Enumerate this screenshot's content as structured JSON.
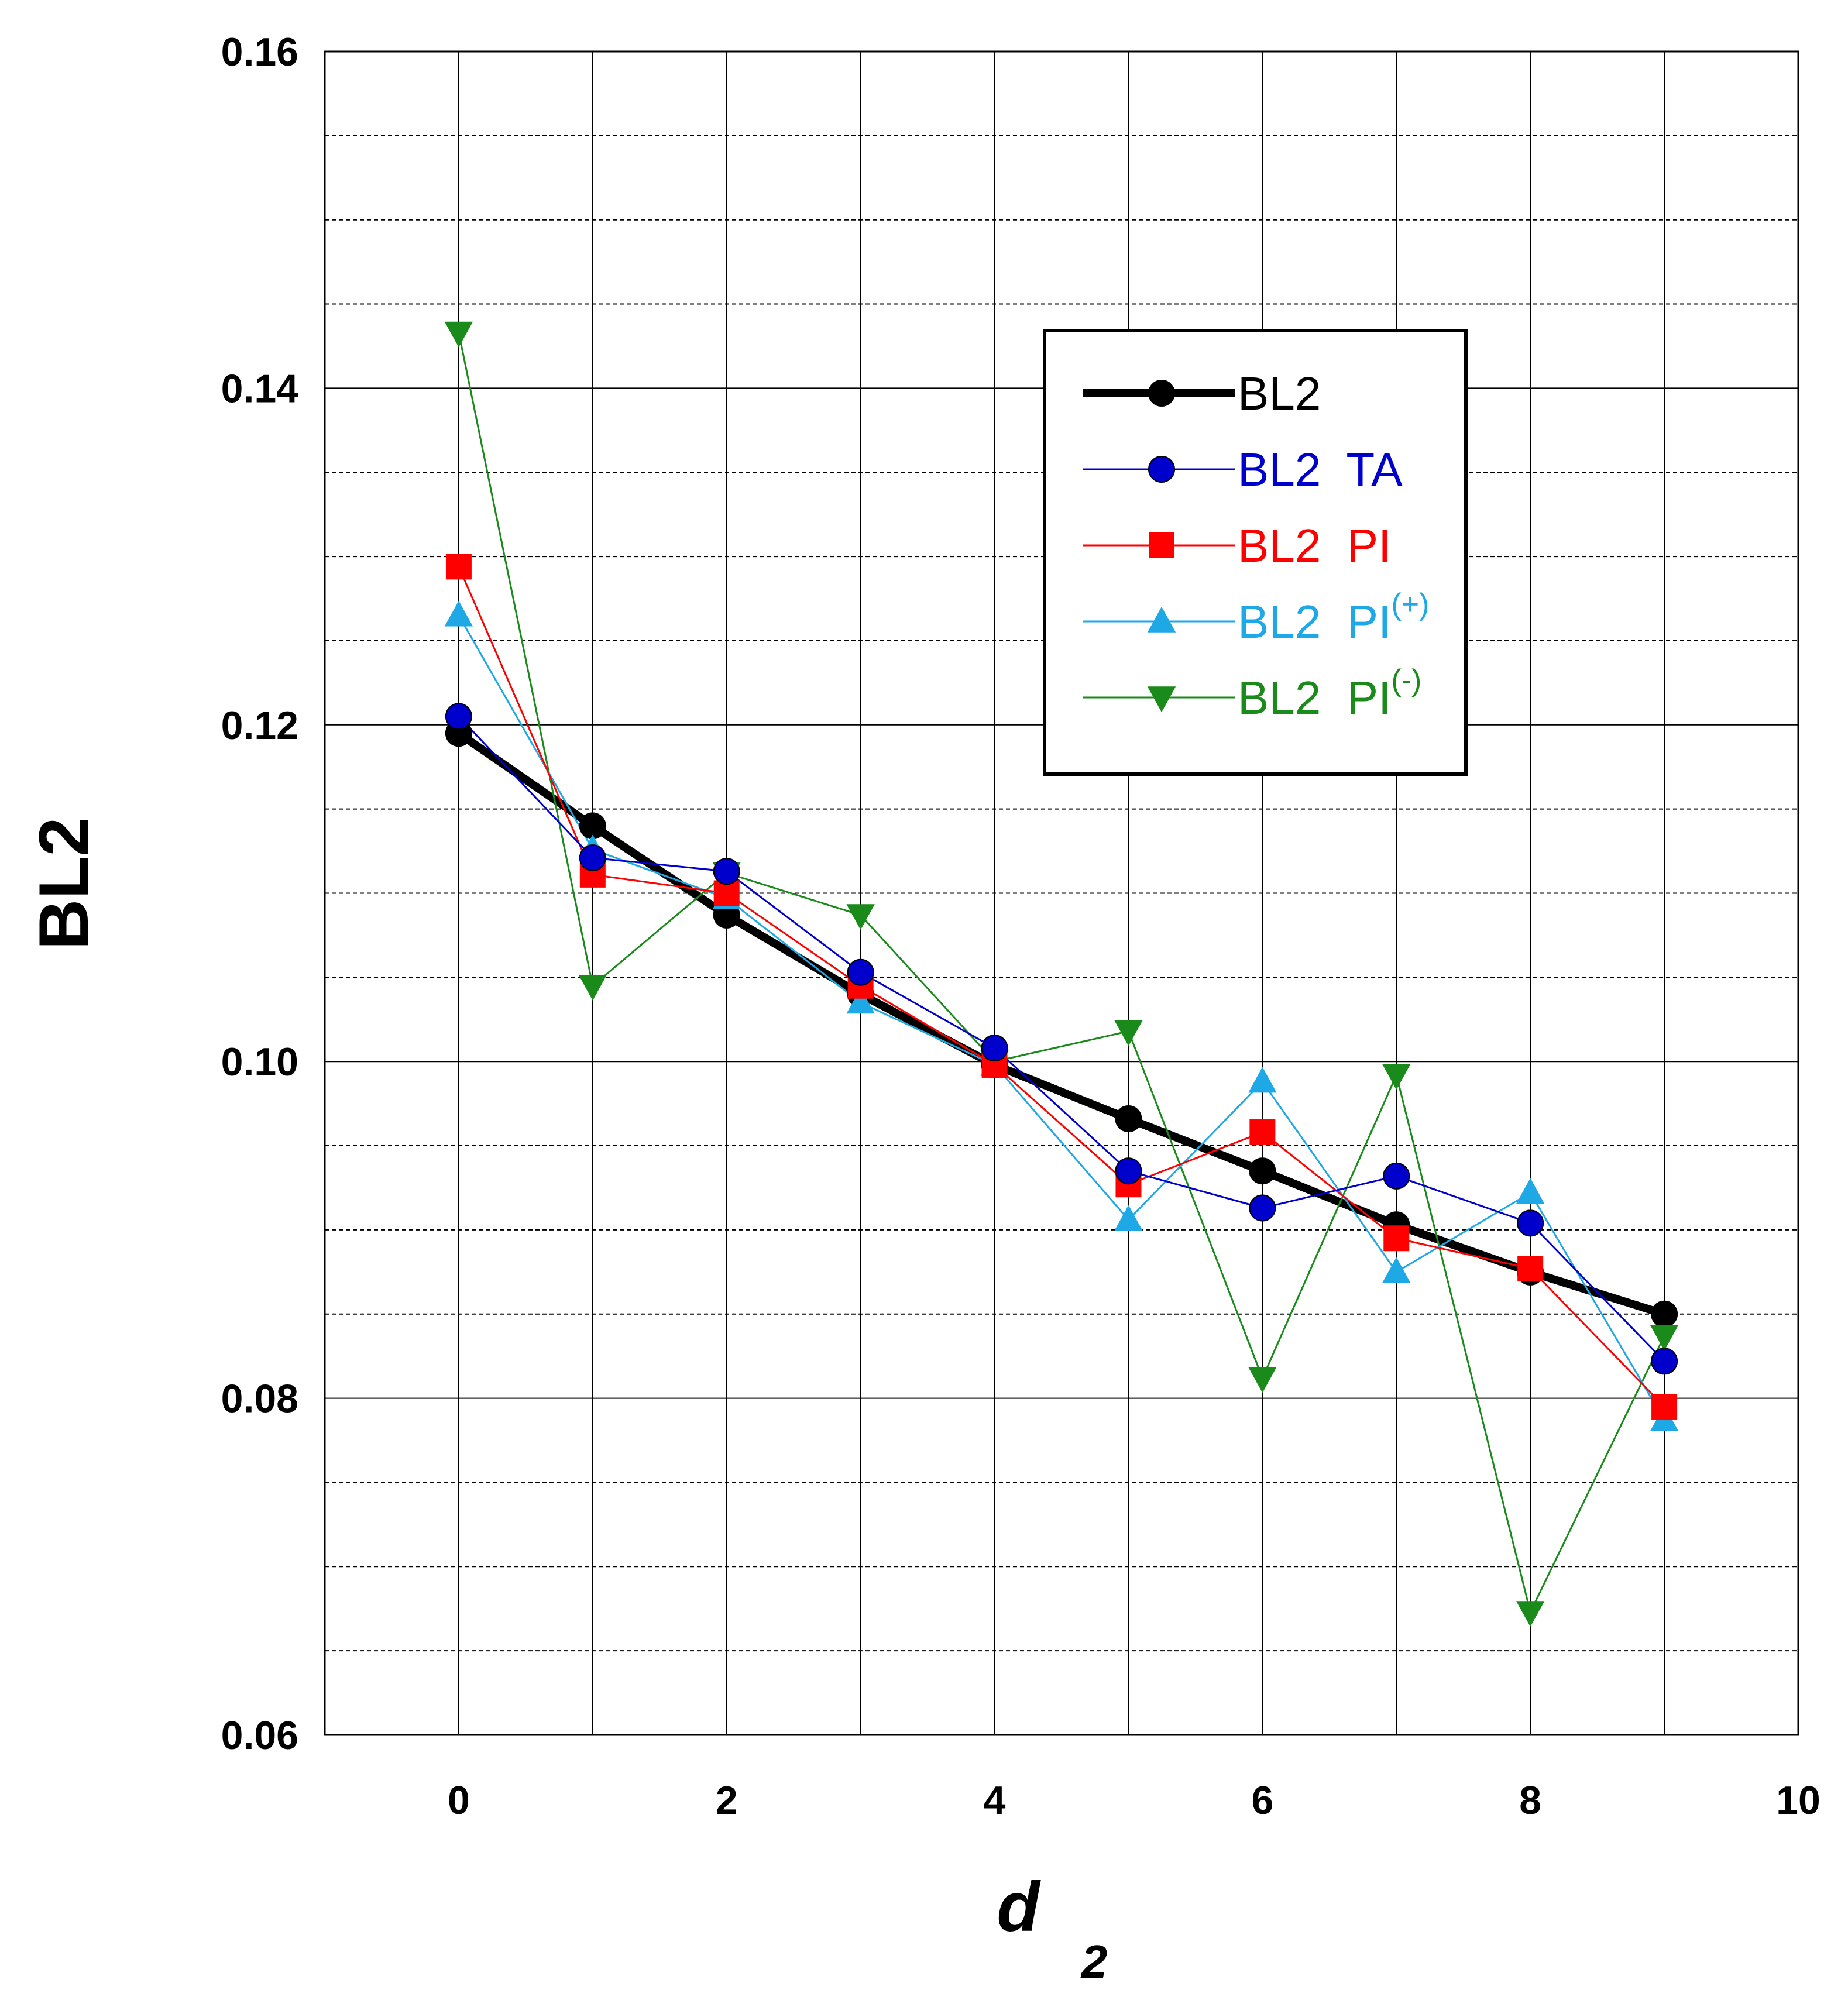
{
  "chart_data": {
    "type": "line",
    "title": "",
    "xlabel": "d",
    "xlabel_subscript": "2",
    "ylabel": "BL2",
    "xlim": [
      -1,
      10
    ],
    "ylim": [
      0.06,
      0.16
    ],
    "xticks": [
      0,
      2,
      4,
      6,
      8,
      10
    ],
    "xtick_labels": [
      "0",
      "2",
      "4",
      "6",
      "8",
      "10"
    ],
    "yticks": [
      0.06,
      0.08,
      0.1,
      0.12,
      0.14,
      0.16
    ],
    "ytick_labels": [
      "0.06",
      "0.08",
      "0.10",
      "0.12",
      "0.14",
      "0.16"
    ],
    "grid": "major solid, minor dashed",
    "legend_position": "upper-right",
    "x": [
      0,
      1,
      2,
      3,
      4,
      5,
      6,
      7,
      8,
      9
    ],
    "series": [
      {
        "name": "BL2",
        "label_main": "BL2",
        "label_sup": "",
        "color": "#000000",
        "marker": "circle",
        "line_width": "thick",
        "values": [
          0.1195,
          0.114,
          0.1087,
          0.104,
          0.0998,
          0.0966,
          0.0935,
          0.0903,
          0.0875,
          0.085
        ]
      },
      {
        "name": "BL2  TA",
        "label_main": "BL2  TA",
        "label_sup": "",
        "color": "#0000cc",
        "marker": "circle",
        "line_width": "thin",
        "values": [
          0.1205,
          0.1121,
          0.1113,
          0.1053,
          0.1008,
          0.0935,
          0.0913,
          0.0932,
          0.0904,
          0.0822
        ]
      },
      {
        "name": "BL2  PI",
        "label_main": "BL2  PI",
        "label_sup": "",
        "color": "#ff0000",
        "marker": "square",
        "line_width": "thin",
        "values": [
          0.1294,
          0.1111,
          0.11,
          0.1045,
          0.0998,
          0.0927,
          0.0958,
          0.0895,
          0.0877,
          0.0795
        ]
      },
      {
        "name": "BL2  PI(+)",
        "label_main": "BL2  PI",
        "label_sup": "(+)",
        "color": "#1ea8e6",
        "marker": "triangle-up",
        "line_width": "thin",
        "values": [
          0.1265,
          0.1126,
          0.1097,
          0.1035,
          0.0998,
          0.0906,
          0.0988,
          0.0875,
          0.0922,
          0.0787
        ]
      },
      {
        "name": "BL2  PI(-)",
        "label_main": "BL2  PI",
        "label_sup": "(-)",
        "color": "#1a8a1a",
        "marker": "triangle-down",
        "line_width": "thin",
        "values": [
          0.1433,
          0.1045,
          0.1112,
          0.1087,
          0.1,
          0.1018,
          0.0812,
          0.0992,
          0.0673,
          0.0837
        ]
      }
    ]
  }
}
